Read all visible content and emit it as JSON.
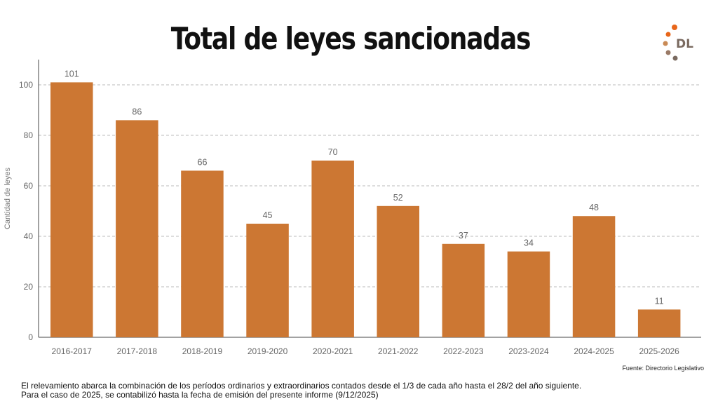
{
  "chart_data": {
    "type": "bar",
    "title": "Total de leyes sancionadas",
    "ylabel": "Cantidad de leyes",
    "xlabel": "",
    "categories": [
      "2016-2017",
      "2017-2018",
      "2018-2019",
      "2019-2020",
      "2020-2021",
      "2021-2022",
      "2022-2023",
      "2023-2024",
      "2024-2025",
      "2025-2026"
    ],
    "values": [
      101,
      86,
      66,
      45,
      70,
      52,
      37,
      34,
      48,
      11
    ],
    "ylim": [
      0,
      110
    ],
    "yticks": [
      0,
      20,
      40,
      60,
      80,
      100
    ],
    "grid": true,
    "bar_color": "#cc7733",
    "data_labels": true
  },
  "logo": {
    "text": "DL",
    "dot_colors": [
      "#e8661a",
      "#c98a55",
      "#9a7a66",
      "#7a6a60"
    ]
  },
  "source": "Fuente: Directorio Legislativo",
  "footnote": {
    "line1": "El relevamiento abarca la combinación de los períodos ordinarios y extraordinarios contados desde el 1/3 de cada año hasta el 28/2 del año siguiente.",
    "line2": "Para el caso de 2025, se contabilizó hasta la fecha de emisión del presente informe (9/12/2025)"
  }
}
